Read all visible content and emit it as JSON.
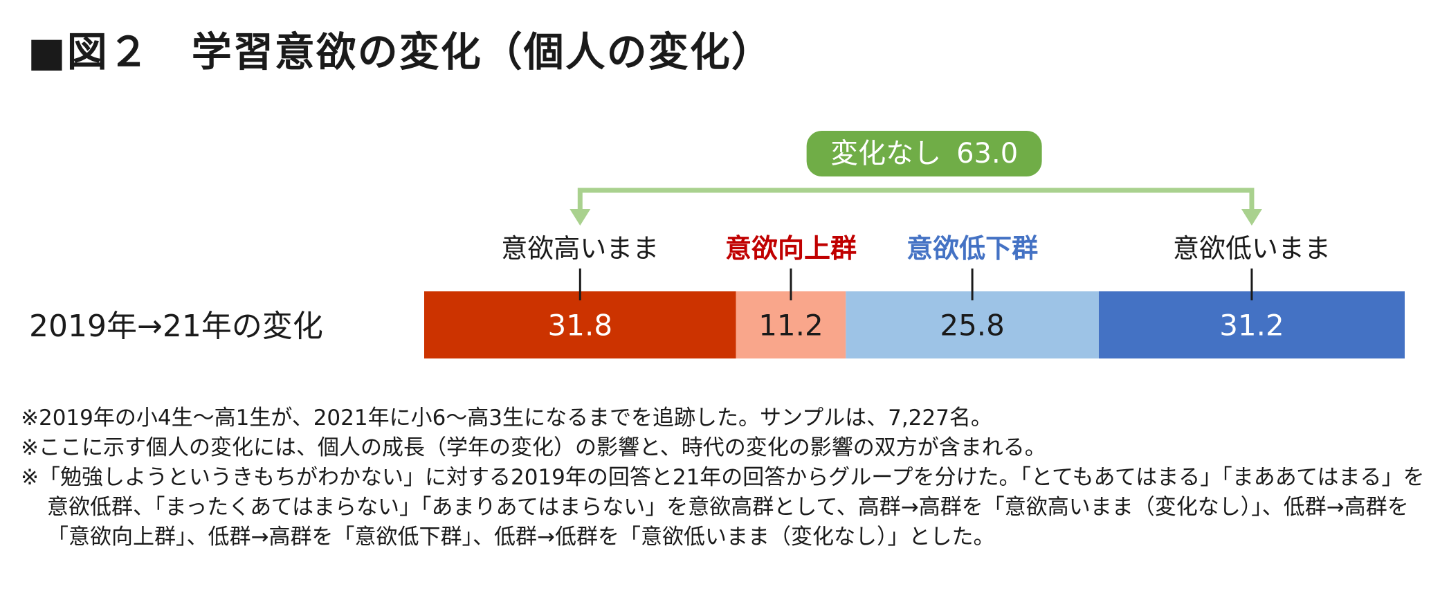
{
  "title": "■図２　学習意欲の変化（個人の変化）",
  "chart_data": {
    "type": "bar",
    "stacked": true,
    "orientation": "horizontal",
    "categories": [
      "2019年→21年の変化"
    ],
    "series": [
      {
        "name": "意欲高いまま",
        "values": [
          31.8
        ],
        "color": "#cc3300",
        "label_color": "#1a1a1a",
        "label_bold": false
      },
      {
        "name": "意欲向上群",
        "values": [
          11.2
        ],
        "color": "#f9a68b",
        "label_color": "#c00000",
        "label_bold": true
      },
      {
        "name": "意欲低下群",
        "values": [
          25.8
        ],
        "color": "#9dc3e6",
        "label_color": "#4472c4",
        "label_bold": true
      },
      {
        "name": "意欲低いまま",
        "values": [
          31.2
        ],
        "color": "#4472c4",
        "label_color": "#1a1a1a",
        "label_bold": false
      }
    ],
    "bracket": {
      "label": "変化なし",
      "value": "63.0",
      "color": "#a9d18e",
      "badge_color": "#70ad47"
    },
    "value_text_colors": [
      "#ffffff",
      "#1a1a1a",
      "#1a1a1a",
      "#ffffff"
    ],
    "xlim": [
      0,
      100
    ]
  },
  "notes": [
    "※2019年の小4生〜高1生が、2021年に小6〜高3生になるまでを追跡した。サンプルは、7,227名。",
    "※ここに示す個人の変化には、個人の成長（学年の変化）の影響と、時代の変化の影響の双方が含まれる。",
    "※「勉強しようというきもちがわかない」に対する2019年の回答と21年の回答からグループを分けた。「とてもあてはまる」「まああてはまる」を意欲低群、「まったくあてはまらない」「あまりあてはまらない」を意欲高群として、高群→高群を「意欲高いまま（変化なし）」、低群→高群を「意欲向上群」、低群→高群を「意欲低下群」、低群→低群を「意欲低いまま（変化なし）」とした。"
  ]
}
